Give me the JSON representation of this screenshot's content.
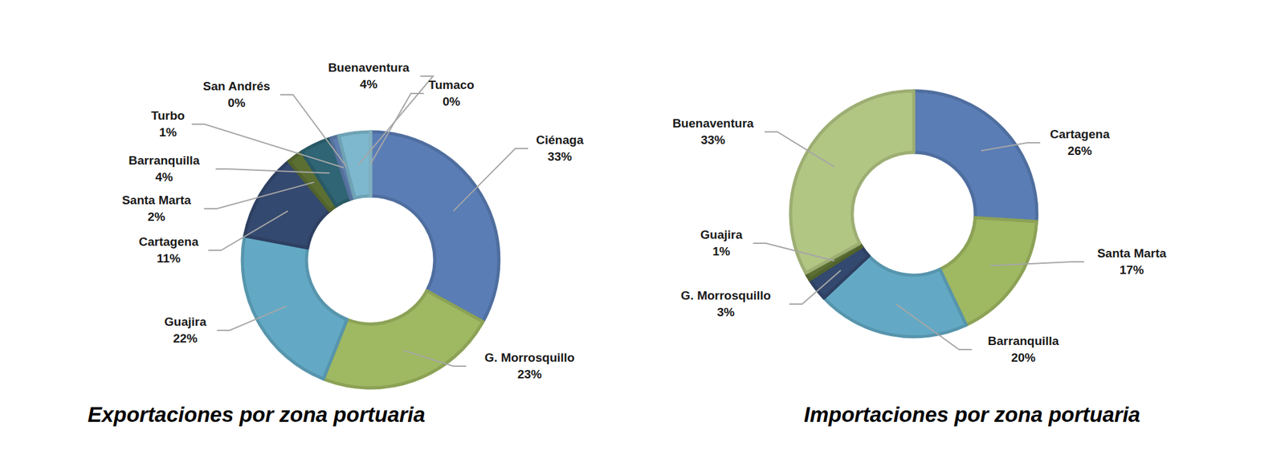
{
  "chart_data": [
    {
      "type": "donut",
      "title": "Exportaciones por zona portuaria",
      "categories": [
        "Ciénaga",
        "G. Morrosquillo",
        "Guajira",
        "Cartagena",
        "Santa Marta",
        "Barranquilla",
        "Turbo",
        "San Andrés",
        "Buenaventura",
        "Tumaco"
      ],
      "values": [
        33,
        23,
        22,
        11,
        2,
        4,
        1,
        0,
        4,
        0
      ],
      "value_labels": [
        "33%",
        "23%",
        "22%",
        "11%",
        "2%",
        "4%",
        "1%",
        "0%",
        "4%",
        "0%"
      ],
      "colors": [
        "#5a7db5",
        "#9fb862",
        "#63a9c5",
        "#34496f",
        "#5c6f33",
        "#2f6574",
        "#5f7fb0",
        "#a9c07d",
        "#7db8ce",
        "#93c8da"
      ],
      "data_labels": true
    },
    {
      "type": "donut",
      "title": "Importaciones por zona portuaria",
      "categories": [
        "Cartagena",
        "Santa Marta",
        "Barranquilla",
        "G. Morrosquillo",
        "Guajira",
        "Buenaventura"
      ],
      "values": [
        26,
        17,
        20,
        3,
        1,
        33
      ],
      "value_labels": [
        "26%",
        "17%",
        "20%",
        "3%",
        "1%",
        "33%"
      ],
      "colors": [
        "#5a7db5",
        "#9fb862",
        "#63a9c5",
        "#34496f",
        "#5c6f33",
        "#b2c683"
      ],
      "data_labels": true
    }
  ]
}
